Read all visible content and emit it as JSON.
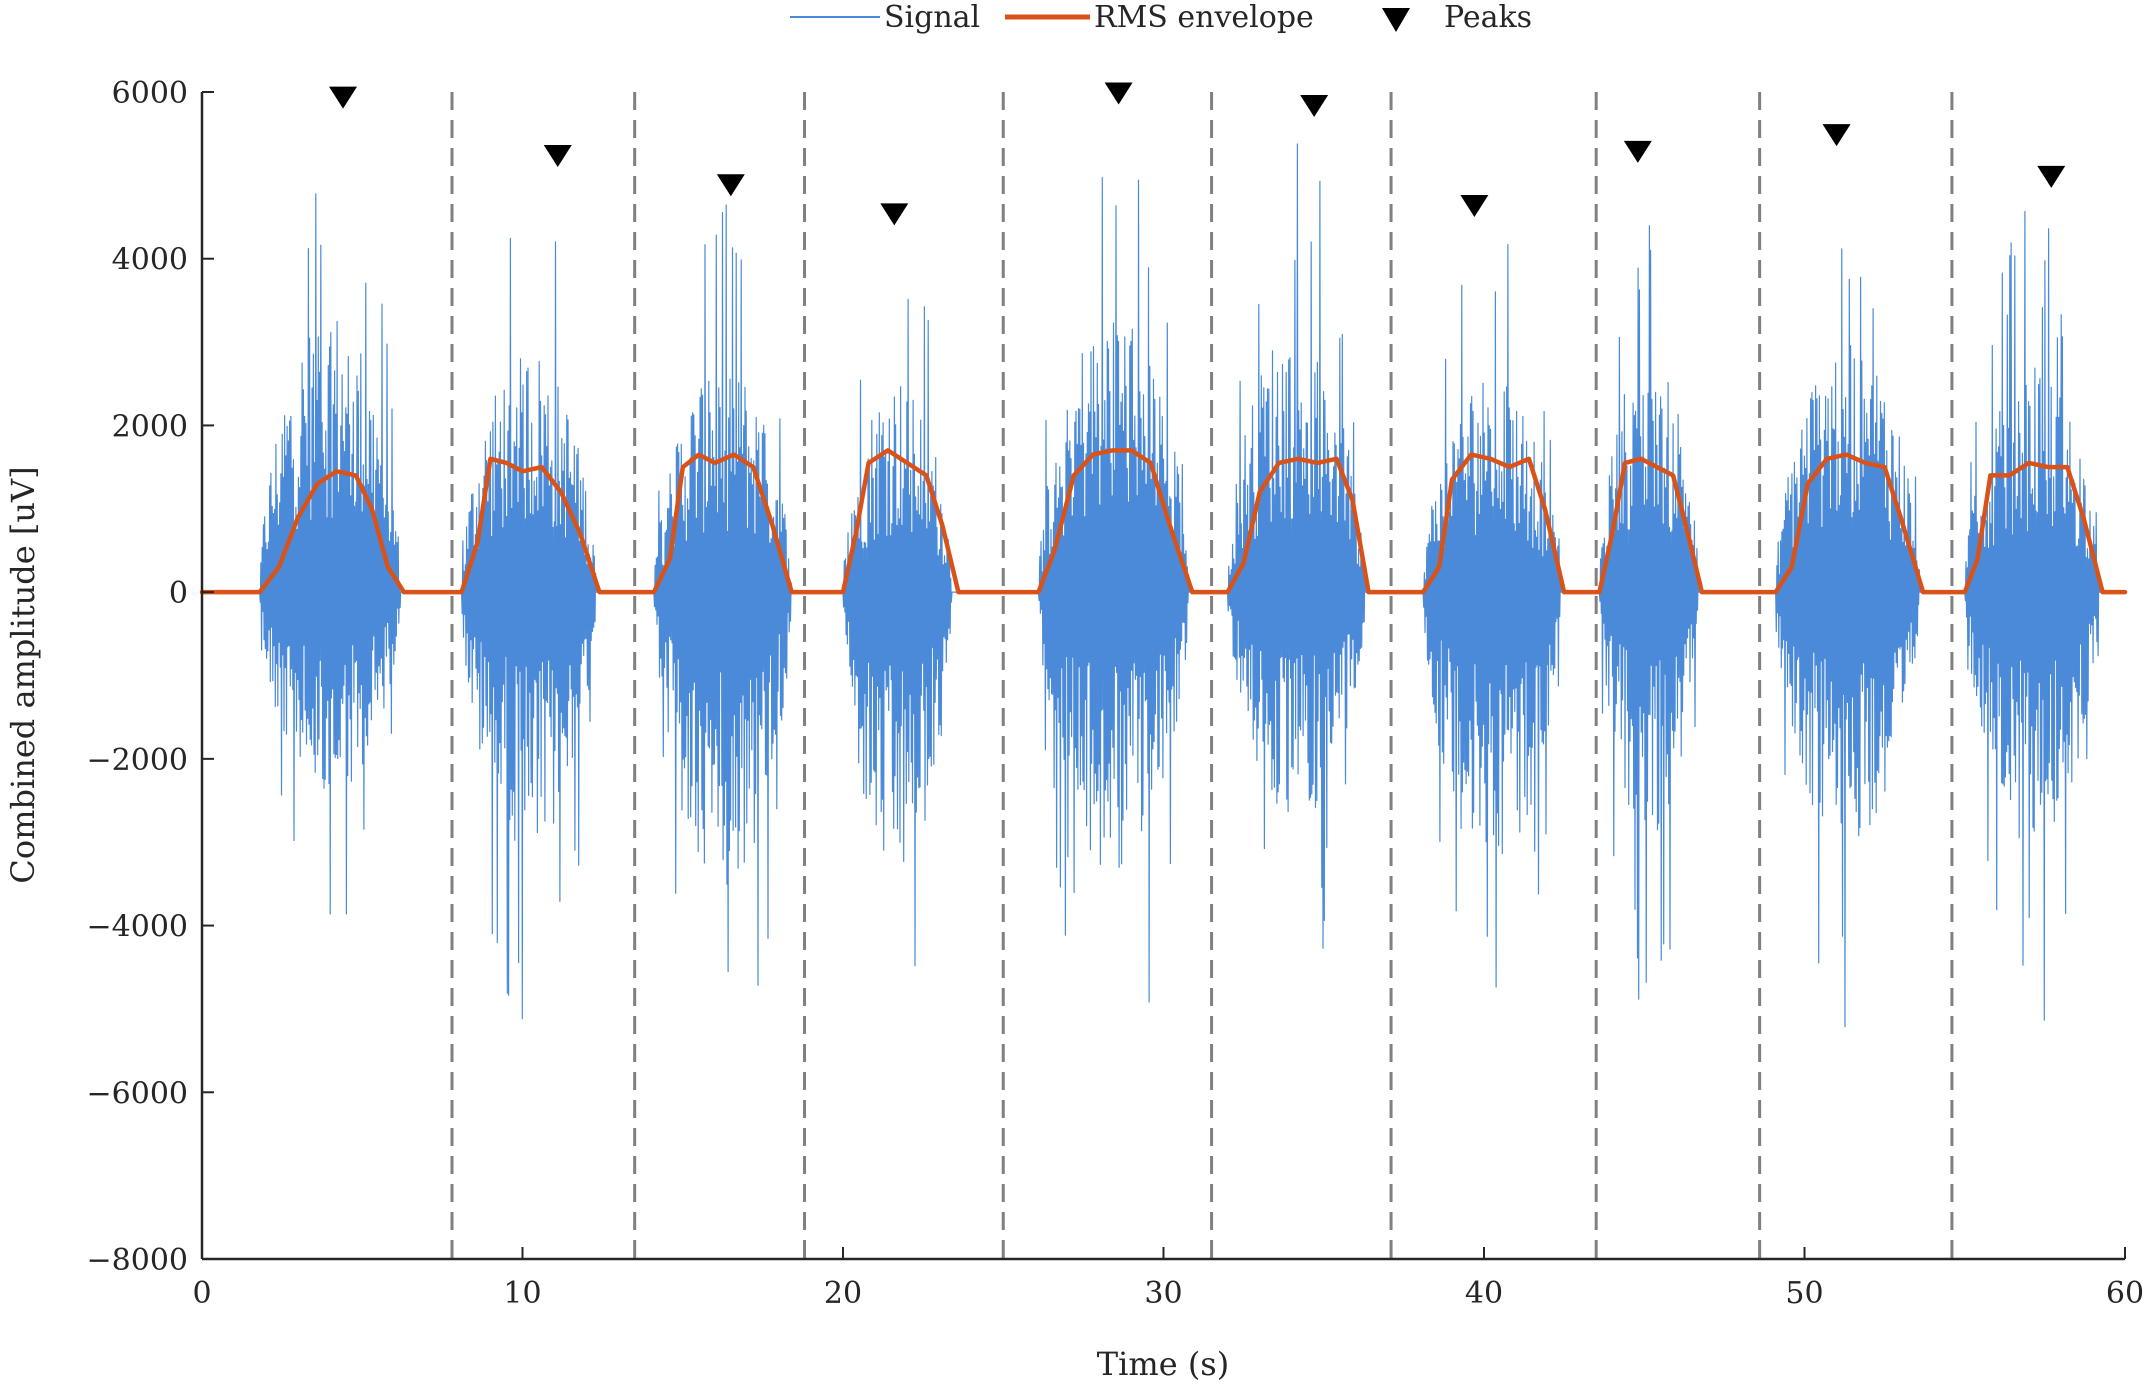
{
  "chart_data": {
    "type": "line",
    "title": "",
    "xlabel": "Time (s)",
    "ylabel": "Combined amplitude [uV]",
    "xlim": [
      0,
      60
    ],
    "ylim": [
      -8000,
      6000
    ],
    "xticks": [
      0,
      10,
      20,
      30,
      40,
      50,
      60
    ],
    "xtick_labels": [
      "0",
      "10",
      "20",
      "30",
      "40",
      "50",
      "60"
    ],
    "yticks": [
      6000,
      4000,
      2000,
      0,
      -2000,
      -4000,
      -6000,
      -8000
    ],
    "ytick_labels": [
      "6000",
      "4000",
      "2000",
      "0",
      "−2000",
      "−4000",
      "−6000",
      "−8000"
    ],
    "grid": false,
    "legend": {
      "placement": "top-center",
      "entries": [
        "Signal",
        "RMS envelope",
        "Peaks"
      ]
    },
    "colors": {
      "signal": "#4a8ad8",
      "rms": "#d95319",
      "peaks": "#000000",
      "dividers": "#808080",
      "axis": "#262626"
    },
    "series": [
      {
        "name": "Signal",
        "kind": "oscillating",
        "bursts": [
          {
            "start": 1.8,
            "end": 6.2,
            "max": 5800,
            "min": -4400
          },
          {
            "start": 8.1,
            "end": 12.3,
            "max": 5000,
            "min": -5500
          },
          {
            "start": 14.1,
            "end": 18.4,
            "max": 4700,
            "min": -6200
          },
          {
            "start": 20.0,
            "end": 23.4,
            "max": 4400,
            "min": -5900
          },
          {
            "start": 26.1,
            "end": 30.8,
            "max": 5800,
            "min": -5900
          },
          {
            "start": 32.0,
            "end": 36.3,
            "max": 5600,
            "min": -4800
          },
          {
            "start": 38.1,
            "end": 42.4,
            "max": 4500,
            "min": -5900
          },
          {
            "start": 43.6,
            "end": 46.7,
            "max": 5100,
            "min": -5300
          },
          {
            "start": 49.1,
            "end": 53.6,
            "max": 5300,
            "min": -5400
          },
          {
            "start": 55.0,
            "end": 59.2,
            "max": 4800,
            "min": -5400
          }
        ]
      },
      {
        "name": "RMS envelope",
        "x": [
          0,
          1.8,
          2.4,
          3.0,
          3.6,
          4.2,
          4.8,
          5.3,
          5.8,
          6.3,
          8.1,
          8.6,
          9.0,
          9.5,
          10.0,
          10.6,
          11.2,
          11.8,
          12.4,
          14.1,
          14.6,
          15.0,
          15.5,
          16.0,
          16.6,
          17.2,
          17.8,
          18.4,
          20.0,
          20.4,
          20.8,
          21.4,
          22.0,
          22.6,
          23.1,
          23.6,
          26.1,
          26.6,
          27.2,
          27.8,
          28.4,
          29.0,
          29.6,
          30.2,
          30.9,
          32.0,
          32.5,
          33.0,
          33.6,
          34.2,
          34.8,
          35.4,
          35.9,
          36.4,
          38.1,
          38.6,
          39.0,
          39.6,
          40.2,
          40.8,
          41.4,
          41.9,
          42.5,
          43.6,
          44.0,
          44.4,
          44.9,
          45.4,
          45.9,
          46.3,
          46.8,
          49.1,
          49.6,
          50.1,
          50.7,
          51.3,
          51.9,
          52.5,
          53.0,
          53.7,
          55.0,
          55.4,
          55.8,
          56.4,
          57.0,
          57.6,
          58.2,
          58.7,
          59.3,
          60
        ],
        "y": [
          0,
          0,
          300,
          900,
          1300,
          1450,
          1400,
          1000,
          300,
          0,
          0,
          600,
          1600,
          1550,
          1450,
          1500,
          1200,
          700,
          0,
          0,
          400,
          1500,
          1650,
          1550,
          1650,
          1500,
          800,
          0,
          0,
          700,
          1550,
          1700,
          1550,
          1400,
          800,
          0,
          0,
          500,
          1400,
          1650,
          1700,
          1700,
          1550,
          800,
          0,
          0,
          350,
          1200,
          1550,
          1600,
          1550,
          1600,
          1100,
          0,
          0,
          300,
          1350,
          1650,
          1600,
          1500,
          1600,
          1000,
          0,
          0,
          700,
          1550,
          1600,
          1500,
          1400,
          800,
          0,
          0,
          300,
          1300,
          1600,
          1650,
          1550,
          1500,
          900,
          0,
          0,
          400,
          1400,
          1400,
          1550,
          1500,
          1500,
          900,
          0,
          0
        ]
      },
      {
        "name": "Peaks",
        "kind": "markers",
        "x": [
          4.4,
          11.1,
          16.5,
          21.6,
          28.6,
          34.7,
          39.7,
          44.8,
          51.0,
          57.7
        ],
        "y": [
          5800,
          5100,
          4750,
          4400,
          5850,
          5700,
          4500,
          5150,
          5350,
          4850
        ]
      }
    ],
    "dividers_x": [
      7.8,
      13.5,
      18.8,
      25.0,
      31.5,
      37.1,
      43.5,
      48.6,
      54.6
    ]
  }
}
